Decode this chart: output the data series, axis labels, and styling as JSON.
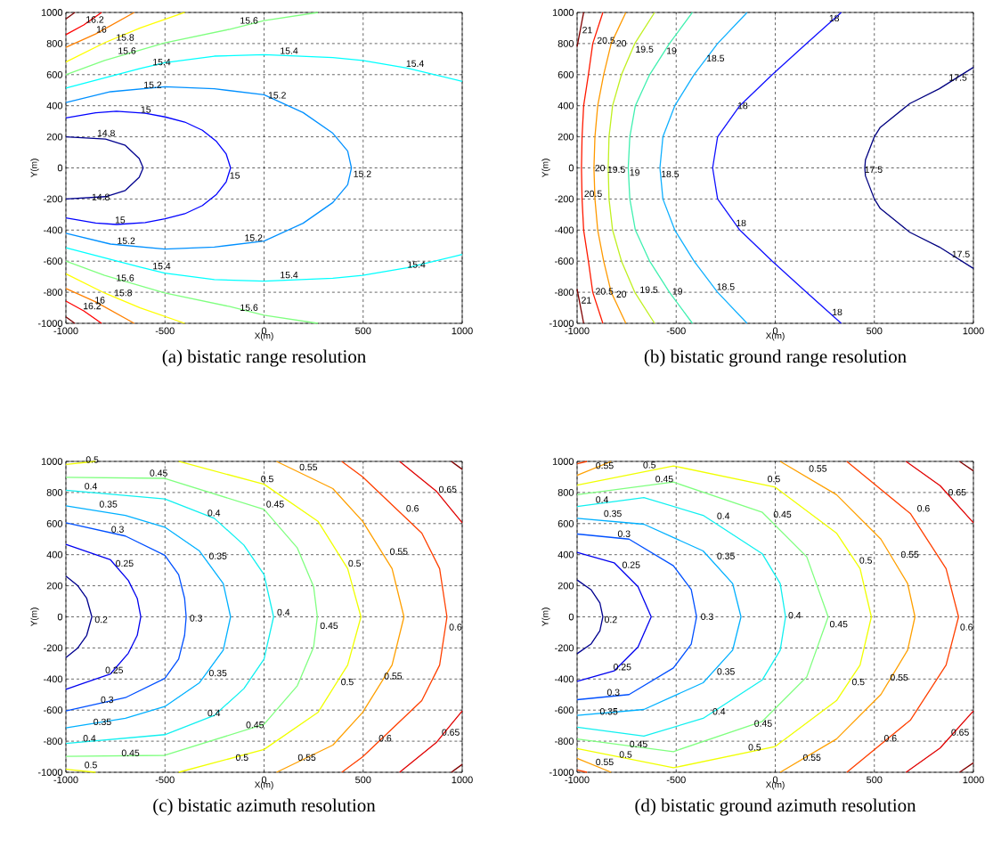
{
  "chart_data": [
    {
      "type": "line",
      "title": "(a) bistatic range resolution",
      "xlabel": "X(m)",
      "ylabel": "Y(m)",
      "xlim": [
        -1000,
        1000
      ],
      "ylim": [
        -1000,
        1000
      ],
      "xticks": [
        -1000,
        -500,
        0,
        500,
        1000
      ],
      "yticks": [
        -1000,
        -800,
        -600,
        -400,
        -200,
        0,
        200,
        400,
        600,
        800,
        1000
      ],
      "grid": true,
      "line_style": "solid",
      "series": [
        {
          "color": "#00008f",
          "x": [
            -1000,
            -800,
            -700,
            -630,
            -610,
            -630,
            -700,
            -800,
            -1000
          ],
          "values": [
            200,
            185,
            145,
            60,
            0,
            -60,
            -145,
            -185,
            -200
          ]
        },
        {
          "color": "#0000ff",
          "x": [
            -1000,
            -850,
            -745,
            -600,
            -500,
            -400,
            -311,
            -240,
            -191,
            -169,
            -191,
            -240,
            -311,
            -400,
            -500,
            -600,
            -745,
            -850,
            -1000
          ],
          "values": [
            322,
            355,
            364,
            352,
            328,
            295,
            242,
            170,
            89,
            0,
            -89,
            -170,
            -242,
            -295,
            -328,
            -352,
            -364,
            -355,
            -322
          ]
        },
        {
          "color": "#0090ff",
          "x": [
            -1000,
            -775,
            -501,
            -251,
            0,
            197,
            347,
            422,
            441,
            422,
            347,
            197,
            0,
            -251,
            -501,
            -775,
            -1000
          ],
          "values": [
            421,
            490,
            522,
            509,
            471,
            356,
            223,
            108,
            0,
            -108,
            -223,
            -356,
            -471,
            -509,
            -522,
            -490,
            -421
          ]
        },
        {
          "color": "#00ffff",
          "x": [
            -1000,
            -625,
            -501,
            -251,
            0,
            347,
            497,
            721,
            1000
          ],
          "values": [
            513,
            639,
            677,
            719,
            729,
            710,
            691,
            643,
            557
          ]
        },
        {
          "color": "#00ffff",
          "x": [
            -1000,
            -625,
            -501,
            -251,
            0,
            347,
            497,
            721,
            1000
          ],
          "values": [
            -513,
            -639,
            -677,
            -719,
            -729,
            -710,
            -691,
            -643,
            -557
          ]
        },
        {
          "color": "#80ff80",
          "x": [
            -1000,
            -805,
            -501,
            -177,
            0,
            272
          ],
          "values": [
            600,
            691,
            805,
            891,
            948,
            1000
          ]
        },
        {
          "color": "#80ff80",
          "x": [
            -1000,
            -805,
            -501,
            -177,
            0,
            272
          ],
          "values": [
            -600,
            -691,
            -805,
            -891,
            -948,
            -1000
          ]
        },
        {
          "color": "#ffff00",
          "x": [
            -1000,
            -805,
            -625,
            -400
          ],
          "values": [
            681,
            805,
            900,
            1000
          ]
        },
        {
          "color": "#ffff00",
          "x": [
            -1000,
            -805,
            -625,
            -400
          ],
          "values": [
            -681,
            -805,
            -900,
            -1000
          ]
        },
        {
          "color": "#ff8000",
          "x": [
            -1000,
            -850,
            -655
          ],
          "values": [
            776,
            862,
            1000
          ]
        },
        {
          "color": "#ff8000",
          "x": [
            -1000,
            -850,
            -655
          ],
          "values": [
            -776,
            -862,
            -1000
          ]
        },
        {
          "color": "#ff0000",
          "x": [
            -1000,
            -910,
            -820
          ],
          "values": [
            857,
            920,
            1000
          ]
        },
        {
          "color": "#ff0000",
          "x": [
            -1000,
            -910,
            -820
          ],
          "values": [
            -857,
            -920,
            -1000
          ]
        },
        {
          "color": "#800000",
          "x": [
            -1000,
            -955
          ],
          "values": [
            958,
            1000
          ]
        },
        {
          "color": "#800000",
          "x": [
            -1000,
            -955
          ],
          "values": [
            -958,
            -1000
          ]
        }
      ],
      "annotations": [
        {
          "text": "16.2",
          "x": -910,
          "y": 920
        },
        {
          "text": "16",
          "x": -857,
          "y": 857
        },
        {
          "text": "15.8",
          "x": -757,
          "y": 805
        },
        {
          "text": "15.6",
          "x": -748,
          "y": 719
        },
        {
          "text": "15.6",
          "x": -132,
          "y": 914
        },
        {
          "text": "15.4",
          "x": -573,
          "y": 647
        },
        {
          "text": "15.4",
          "x": 70,
          "y": 719
        },
        {
          "text": "15.4",
          "x": 706,
          "y": 637
        },
        {
          "text": "15.2",
          "x": -618,
          "y": 500
        },
        {
          "text": "15.2",
          "x": 10,
          "y": 433
        },
        {
          "text": "15.2",
          "x": 440,
          "y": -73
        },
        {
          "text": "15.2",
          "x": -752,
          "y": -503
        },
        {
          "text": "15.2",
          "x": -109,
          "y": -484
        },
        {
          "text": "15",
          "x": -633,
          "y": 341
        },
        {
          "text": "15",
          "x": -184,
          "y": -83
        },
        {
          "text": "15",
          "x": -763,
          "y": -369
        },
        {
          "text": "14.8",
          "x": -853,
          "y": 190
        },
        {
          "text": "14.8",
          "x": -880,
          "y": -222
        },
        {
          "text": "15.4",
          "x": -573,
          "y": -666
        },
        {
          "text": "15.4",
          "x": 70,
          "y": -723
        },
        {
          "text": "15.4",
          "x": 713,
          "y": -656
        },
        {
          "text": "15.6",
          "x": -757,
          "y": -742
        },
        {
          "text": "15.6",
          "x": -132,
          "y": -933
        },
        {
          "text": "15.8",
          "x": -767,
          "y": -838
        },
        {
          "text": "16",
          "x": -865,
          "y": -885
        },
        {
          "text": "16.2",
          "x": -924,
          "y": -923
        }
      ]
    },
    {
      "type": "line",
      "title": "(b) bistatic ground range resolution",
      "xlabel": "X(m)",
      "ylabel": "Y(m)",
      "xlim": [
        -1000,
        1000
      ],
      "ylim": [
        -1000,
        1000
      ],
      "xticks": [
        -1000,
        -500,
        0,
        500,
        1000
      ],
      "yticks": [
        -1000,
        -800,
        -600,
        -400,
        -200,
        0,
        200,
        400,
        600,
        800,
        1000
      ],
      "grid": true,
      "line_style": "solid",
      "series": [
        {
          "color": "#000080",
          "x": [
            1000,
            828,
            679,
            530,
            500,
            455,
            452,
            455,
            500,
            530,
            679,
            828,
            1000
          ],
          "values": [
            647,
            509,
            414,
            261,
            200,
            51,
            0,
            -51,
            -200,
            -261,
            -414,
            -509,
            -647
          ]
        },
        {
          "color": "#1010ff",
          "x": [
            333,
            157,
            -15,
            -179,
            -291,
            -316,
            -291,
            -179,
            -15,
            157,
            333
          ],
          "values": [
            1000,
            800,
            600,
            400,
            200,
            0,
            -200,
            -400,
            -600,
            -800,
            -1000
          ]
        },
        {
          "color": "#10b0ff",
          "x": [
            -142,
            -291,
            -410,
            -507,
            -567,
            -582,
            -567,
            -507,
            -410,
            -291,
            -142
          ],
          "values": [
            1000,
            800,
            600,
            400,
            200,
            0,
            -200,
            -400,
            -600,
            -800,
            -1000
          ]
        },
        {
          "color": "#40f0b0",
          "x": [
            -418,
            -534,
            -634,
            -706,
            -734,
            -742,
            -734,
            -706,
            -634,
            -534,
            -418
          ],
          "values": [
            1000,
            800,
            600,
            400,
            200,
            0,
            -200,
            -400,
            -600,
            -800,
            -1000
          ]
        },
        {
          "color": "#c0f020",
          "x": [
            -609,
            -709,
            -776,
            -821,
            -839,
            -843,
            -839,
            -821,
            -776,
            -709,
            -609
          ],
          "values": [
            1000,
            800,
            600,
            400,
            200,
            0,
            -200,
            -400,
            -600,
            -800,
            -1000
          ]
        },
        {
          "color": "#ff9a00",
          "x": [
            -754,
            -828,
            -866,
            -896,
            -910,
            -915,
            -910,
            -896,
            -866,
            -828,
            -754
          ],
          "values": [
            1000,
            800,
            600,
            400,
            200,
            0,
            -200,
            -400,
            -600,
            -800,
            -1000
          ]
        },
        {
          "color": "#ff1a00",
          "x": [
            -870,
            -921,
            -943,
            -967,
            -975,
            -978,
            -975,
            -967,
            -943,
            -921,
            -870
          ],
          "values": [
            1000,
            800,
            600,
            400,
            200,
            0,
            -200,
            -400,
            -600,
            -800,
            -1000
          ]
        },
        {
          "color": "#800000",
          "x": [
            -1000,
            -967
          ],
          "values": [
            780,
            1000
          ]
        },
        {
          "color": "#800000",
          "x": [
            -1000,
            -967
          ],
          "values": [
            -780,
            -1000
          ]
        }
      ],
      "annotations": [
        {
          "text": "21",
          "x": -985,
          "y": 853
        },
        {
          "text": "20.5",
          "x": -910,
          "y": 786
        },
        {
          "text": "20",
          "x": -813,
          "y": 767
        },
        {
          "text": "19.5",
          "x": -716,
          "y": 729
        },
        {
          "text": "19",
          "x": -560,
          "y": 719
        },
        {
          "text": "18.5",
          "x": -358,
          "y": 671
        },
        {
          "text": "18",
          "x": 261,
          "y": 929
        },
        {
          "text": "18",
          "x": -201,
          "y": 366
        },
        {
          "text": "17.5",
          "x": 866,
          "y": 547
        },
        {
          "text": "20.5",
          "x": -975,
          "y": -200
        },
        {
          "text": "20",
          "x": -921,
          "y": -35
        },
        {
          "text": "19.5",
          "x": -858,
          "y": -45
        },
        {
          "text": "19",
          "x": -746,
          "y": -64
        },
        {
          "text": "18.5",
          "x": -587,
          "y": -74
        },
        {
          "text": "17.5",
          "x": 440,
          "y": -45
        },
        {
          "text": "18",
          "x": -209,
          "y": -389
        },
        {
          "text": "17.5",
          "x": 881,
          "y": -589
        },
        {
          "text": "21",
          "x": -990,
          "y": -885
        },
        {
          "text": "20.5",
          "x": -918,
          "y": -828
        },
        {
          "text": "20",
          "x": -813,
          "y": -847
        },
        {
          "text": "19.5",
          "x": -694,
          "y": -818
        },
        {
          "text": "19",
          "x": -530,
          "y": -828
        },
        {
          "text": "18.5",
          "x": -306,
          "y": -799
        },
        {
          "text": "18",
          "x": 276,
          "y": -962
        }
      ]
    },
    {
      "type": "line",
      "title": "(c) bistatic azimuth resolution",
      "xlabel": "X(m)",
      "ylabel": "Y(m)",
      "xlim": [
        -1000,
        1000
      ],
      "ylim": [
        -1000,
        1000
      ],
      "xticks": [
        -1000,
        -500,
        0,
        500,
        1000
      ],
      "yticks": [
        -1000,
        -800,
        -600,
        -400,
        -200,
        0,
        200,
        400,
        600,
        800,
        1000
      ],
      "grid": true,
      "line_style": "solid",
      "series": [
        {
          "color": "#00008f",
          "x": [
            -1000,
            -940,
            -895,
            -869,
            -895,
            -940,
            -1000
          ],
          "values": [
            262,
            200,
            119,
            0,
            -119,
            -200,
            -262
          ]
        },
        {
          "color": "#0000ef",
          "x": [
            -1000,
            -775,
            -685,
            -640,
            -622,
            -640,
            -685,
            -775,
            -1000
          ],
          "values": [
            466,
            367,
            234,
            119,
            0,
            -119,
            -234,
            -367,
            -466
          ]
        },
        {
          "color": "#0050ff",
          "x": [
            -1000,
            -700,
            -501,
            -431,
            -401,
            -393,
            -401,
            -431,
            -501,
            -700,
            -1000
          ],
          "values": [
            605,
            520,
            396,
            272,
            119,
            0,
            -119,
            -272,
            -396,
            -520,
            -605
          ]
        },
        {
          "color": "#00b0ff",
          "x": [
            -1000,
            -700,
            -501,
            -326,
            -206,
            -169,
            -206,
            -326,
            -501,
            -700,
            -1000
          ],
          "values": [
            714,
            653,
            577,
            424,
            214,
            0,
            -214,
            -424,
            -577,
            -653,
            -714
          ]
        },
        {
          "color": "#10f0f0",
          "x": [
            -1000,
            -501,
            -251,
            -102,
            0,
            48,
            0,
            -102,
            -251,
            -501,
            -1000
          ],
          "values": [
            815,
            758,
            634,
            462,
            272,
            0,
            -272,
            -462,
            -634,
            -758,
            -815
          ]
        },
        {
          "color": "#80ff80",
          "x": [
            -1000,
            -501,
            0,
            168,
            250,
            269,
            250,
            168,
            0,
            -501,
            -1000
          ],
          "values": [
            897,
            891,
            691,
            443,
            195,
            0,
            -195,
            -443,
            -691,
            -891,
            -897
          ]
        },
        {
          "color": "#f0ff00",
          "x": [
            -431,
            0,
            272,
            422,
            489,
            422,
            272,
            0,
            -431
          ],
          "values": [
            1000,
            853,
            615,
            310,
            0,
            -310,
            -615,
            -853,
            -1000
          ]
        },
        {
          "color": "#f0ff00",
          "x": [
            -1000,
            -850
          ],
          "values": [
            981,
            1000
          ]
        },
        {
          "color": "#f0ff00",
          "x": [
            -1000,
            -850
          ],
          "values": [
            -981,
            -1000
          ]
        },
        {
          "color": "#ffa000",
          "x": [
            63,
            347,
            497,
            646,
            706,
            646,
            497,
            347,
            63
          ],
          "values": [
            1000,
            825,
            615,
            310,
            0,
            -310,
            -615,
            -825,
            -1000
          ]
        },
        {
          "color": "#ff4000",
          "x": [
            392,
            497,
            796,
            886,
            923,
            886,
            796,
            497,
            392
          ],
          "values": [
            1000,
            901,
            539,
            310,
            0,
            -310,
            -539,
            -901,
            -1000
          ]
        },
        {
          "color": "#e00000",
          "x": [
            684,
            871,
            1000
          ],
          "values": [
            1000,
            806,
            605
          ]
        },
        {
          "color": "#e00000",
          "x": [
            684,
            871,
            1000
          ],
          "values": [
            -1000,
            -806,
            -605
          ]
        },
        {
          "color": "#800000",
          "x": [
            945,
            1000
          ],
          "values": [
            1000,
            949
          ]
        },
        {
          "color": "#800000",
          "x": [
            945,
            1000
          ],
          "values": [
            -1000,
            -949
          ]
        }
      ],
      "annotations": [
        {
          "text": "0.5",
          "x": -910,
          "y": 977
        },
        {
          "text": "0.45",
          "x": -588,
          "y": 891
        },
        {
          "text": "0.4",
          "x": -917,
          "y": 806
        },
        {
          "text": "0.35",
          "x": -842,
          "y": 691
        },
        {
          "text": "0.3",
          "x": -782,
          "y": 529
        },
        {
          "text": "0.25",
          "x": -760,
          "y": 310
        },
        {
          "text": "0.2",
          "x": -865,
          "y": -52
        },
        {
          "text": "0.3",
          "x": -386,
          "y": -43
        },
        {
          "text": "0.4",
          "x": 55,
          "y": -5
        },
        {
          "text": "0.45",
          "x": 272,
          "y": -91
        },
        {
          "text": "0.6",
          "x": 923,
          "y": -100
        },
        {
          "text": "0.55",
          "x": 168,
          "y": 929
        },
        {
          "text": "0.5",
          "x": -27,
          "y": 853
        },
        {
          "text": "0.45",
          "x": 0,
          "y": 691
        },
        {
          "text": "0.4",
          "x": -296,
          "y": 634
        },
        {
          "text": "0.35",
          "x": -289,
          "y": 357
        },
        {
          "text": "0.5",
          "x": 414,
          "y": 310
        },
        {
          "text": "0.55",
          "x": 624,
          "y": 386
        },
        {
          "text": "0.6",
          "x": 706,
          "y": 663
        },
        {
          "text": "0.65",
          "x": 871,
          "y": 786
        },
        {
          "text": "0.25",
          "x": -812,
          "y": -377
        },
        {
          "text": "0.35",
          "x": -289,
          "y": -396
        },
        {
          "text": "0.5",
          "x": 377,
          "y": -453
        },
        {
          "text": "0.55",
          "x": 595,
          "y": -415
        },
        {
          "text": "0.3",
          "x": -835,
          "y": -567
        },
        {
          "text": "0.4",
          "x": -296,
          "y": -653
        },
        {
          "text": "0.35",
          "x": -872,
          "y": -710
        },
        {
          "text": "0.45",
          "x": -102,
          "y": -729
        },
        {
          "text": "0.6",
          "x": 568,
          "y": -815
        },
        {
          "text": "0.65",
          "x": 886,
          "y": -777
        },
        {
          "text": "0.4",
          "x": -924,
          "y": -815
        },
        {
          "text": "0.45",
          "x": -730,
          "y": -910
        },
        {
          "text": "0.5",
          "x": -154,
          "y": -939
        },
        {
          "text": "0.55",
          "x": 160,
          "y": -939
        },
        {
          "text": "0.5",
          "x": -917,
          "y": -987
        }
      ]
    },
    {
      "type": "line",
      "title": "(d) bistatic ground azimuth resolution",
      "xlabel": "X(m)",
      "ylabel": "Y(m)",
      "xlim": [
        -1000,
        1000
      ],
      "ylim": [
        -1000,
        1000
      ],
      "xticks": [
        -1000,
        -500,
        0,
        500,
        1000
      ],
      "yticks": [
        -1000,
        -800,
        -600,
        -400,
        -200,
        0,
        200,
        400,
        600,
        800,
        1000
      ],
      "grid": true,
      "line_style": "solid",
      "series": [
        {
          "color": "#00008f",
          "x": [
            -1000,
            -930,
            -885,
            -870,
            -885,
            -930,
            -1000
          ],
          "values": [
            237,
            175,
            90,
            0,
            -90,
            -175,
            -237
          ]
        },
        {
          "color": "#0000ef",
          "x": [
            -1000,
            -813,
            -693,
            -626,
            -693,
            -813,
            -1000
          ],
          "values": [
            415,
            348,
            195,
            0,
            -195,
            -348,
            -415
          ]
        },
        {
          "color": "#0050ff",
          "x": [
            -1000,
            -738,
            -514,
            -424,
            -397,
            -424,
            -514,
            -738,
            -1000
          ],
          "values": [
            533,
            500,
            329,
            176,
            0,
            -176,
            -329,
            -500,
            -533
          ]
        },
        {
          "color": "#00b0ff",
          "x": [
            -1000,
            -663,
            -364,
            -215,
            -173,
            -215,
            -364,
            -663,
            -1000
          ],
          "values": [
            634,
            596,
            424,
            214,
            0,
            -214,
            -424,
            -596,
            -634
          ]
        },
        {
          "color": "#10f0f0",
          "x": [
            -1000,
            -663,
            -364,
            -65,
            25,
            52,
            25,
            -65,
            -364,
            -663,
            -1000
          ],
          "values": [
            710,
            767,
            653,
            405,
            214,
            0,
            -214,
            -405,
            -653,
            -767,
            -710
          ]
        },
        {
          "color": "#80ff80",
          "x": [
            -1000,
            -514,
            -65,
            159,
            267,
            159,
            -65,
            -514,
            -1000
          ],
          "values": [
            786,
            867,
            672,
            386,
            0,
            -386,
            -672,
            -867,
            -786
          ]
        },
        {
          "color": "#f0ff00",
          "x": [
            -1000,
            -514,
            0,
            309,
            428,
            485,
            428,
            309,
            0,
            -514,
            -1000
          ],
          "values": [
            847,
            971,
            834,
            539,
            310,
            0,
            -310,
            -539,
            -834,
            -971,
            -847
          ]
        },
        {
          "color": "#ffa000",
          "x": [
            -1000,
            -828
          ],
          "values": [
            910,
            1000
          ]
        },
        {
          "color": "#ffa000",
          "x": [
            -1000,
            -828
          ],
          "values": [
            -910,
            -1000
          ]
        },
        {
          "color": "#ffa000",
          "x": [
            25,
            309,
            533,
            668,
            705,
            668,
            533,
            309,
            25
          ],
          "values": [
            1000,
            786,
            500,
            214,
            0,
            -214,
            -500,
            -786,
            -1000
          ]
        },
        {
          "color": "#ff4000",
          "x": [
            361,
            683,
            862,
            925,
            862,
            683,
            361
          ],
          "values": [
            1000,
            663,
            310,
            0,
            -310,
            -663,
            -1000
          ]
        },
        {
          "color": "#ff4000",
          "x": [
            -1000,
            -950
          ],
          "values": [
            985,
            1000
          ]
        },
        {
          "color": "#ff4000",
          "x": [
            -1000,
            -950
          ],
          "values": [
            -985,
            -1000
          ]
        },
        {
          "color": "#e00000",
          "x": [
            660,
            832,
            1000
          ],
          "values": [
            1000,
            844,
            605
          ]
        },
        {
          "color": "#e00000",
          "x": [
            660,
            832,
            1000
          ],
          "values": [
            -1000,
            -844,
            -605
          ]
        },
        {
          "color": "#800000",
          "x": [
            930,
            1000
          ],
          "values": [
            1000,
            939
          ]
        },
        {
          "color": "#800000",
          "x": [
            930,
            1000
          ],
          "values": [
            -1000,
            -939
          ]
        }
      ],
      "annotations": [
        {
          "text": "0.55",
          "x": -917,
          "y": 939
        },
        {
          "text": "0.5",
          "x": -678,
          "y": 943
        },
        {
          "text": "0.45",
          "x": -616,
          "y": 853
        },
        {
          "text": "0.4",
          "x": -917,
          "y": 720
        },
        {
          "text": "0.35",
          "x": -876,
          "y": 630
        },
        {
          "text": "0.3",
          "x": -806,
          "y": 500
        },
        {
          "text": "0.25",
          "x": -783,
          "y": 300
        },
        {
          "text": "0.2",
          "x": -873,
          "y": -52
        },
        {
          "text": "0.3",
          "x": -387,
          "y": -33
        },
        {
          "text": "0.4",
          "x": 55,
          "y": -24
        },
        {
          "text": "0.45",
          "x": 264,
          "y": -81
        },
        {
          "text": "0.6",
          "x": 922,
          "y": -100
        },
        {
          "text": "0.55",
          "x": 159,
          "y": 920
        },
        {
          "text": "0.5",
          "x": -50,
          "y": 853
        },
        {
          "text": "0.45",
          "x": -20,
          "y": 625
        },
        {
          "text": "0.4",
          "x": -305,
          "y": 615
        },
        {
          "text": "0.35",
          "x": -305,
          "y": 357
        },
        {
          "text": "0.5",
          "x": 414,
          "y": 329
        },
        {
          "text": "0.55",
          "x": 623,
          "y": 367
        },
        {
          "text": "0.6",
          "x": 705,
          "y": 663
        },
        {
          "text": "0.65",
          "x": 862,
          "y": 767
        },
        {
          "text": "0.25",
          "x": -828,
          "y": -357
        },
        {
          "text": "0.35",
          "x": -305,
          "y": -386
        },
        {
          "text": "0.5",
          "x": 376,
          "y": -453
        },
        {
          "text": "0.55",
          "x": 569,
          "y": -424
        },
        {
          "text": "0.3",
          "x": -860,
          "y": -520
        },
        {
          "text": "0.4",
          "x": -327,
          "y": -643
        },
        {
          "text": "0.35",
          "x": -896,
          "y": -643
        },
        {
          "text": "0.45",
          "x": -117,
          "y": -720
        },
        {
          "text": "0.6",
          "x": 538,
          "y": -815
        },
        {
          "text": "0.65",
          "x": 877,
          "y": -777
        },
        {
          "text": "0.45",
          "x": -746,
          "y": -853
        },
        {
          "text": "0.5",
          "x": -798,
          "y": -920
        },
        {
          "text": "0.55",
          "x": -917,
          "y": -968
        },
        {
          "text": "0.5",
          "x": -147,
          "y": -873
        },
        {
          "text": "0.55",
          "x": 129,
          "y": -939
        }
      ]
    }
  ]
}
